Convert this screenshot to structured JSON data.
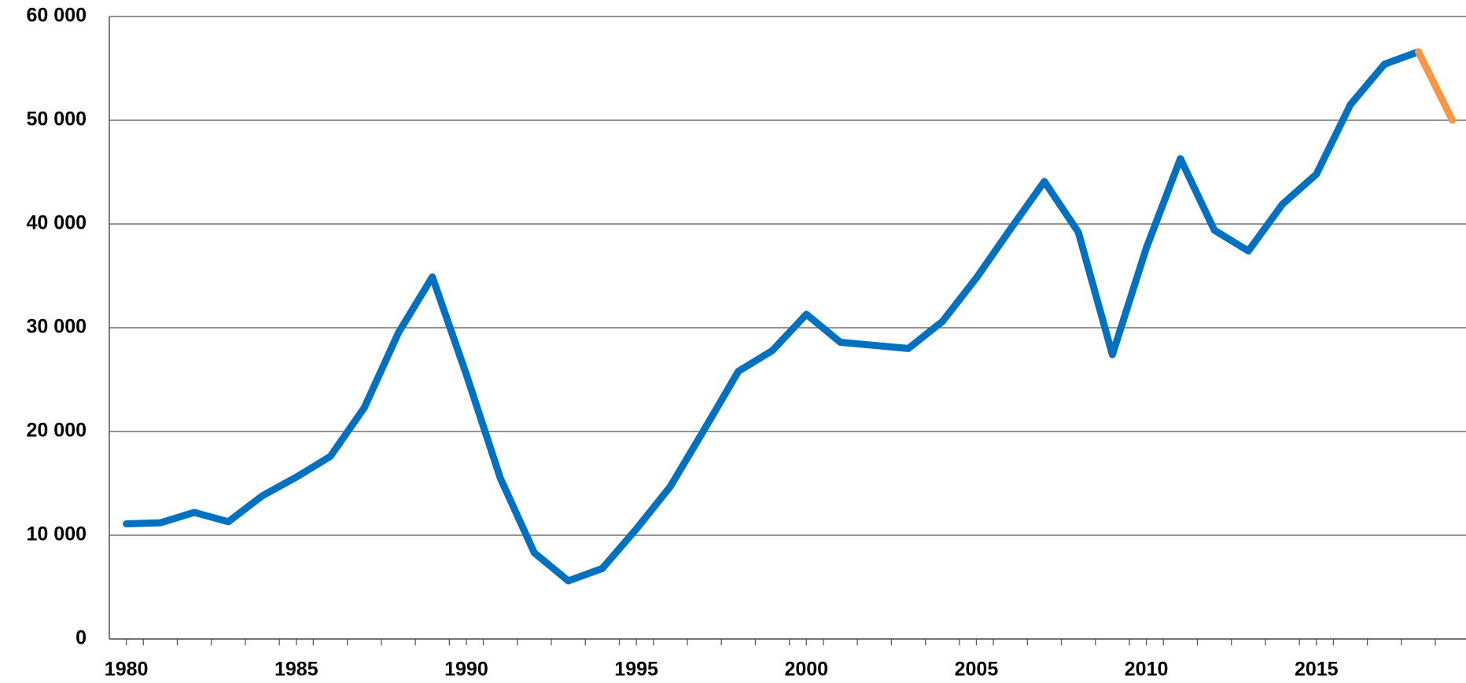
{
  "chart_data": {
    "type": "line",
    "x": [
      1980,
      1981,
      1982,
      1983,
      1984,
      1985,
      1986,
      1987,
      1988,
      1989,
      1990,
      1991,
      1992,
      1993,
      1994,
      1995,
      1996,
      1997,
      1998,
      1999,
      2000,
      2001,
      2002,
      2003,
      2004,
      2005,
      2006,
      2007,
      2008,
      2009,
      2010,
      2011,
      2012,
      2013,
      2014,
      2015,
      2016,
      2017,
      2018,
      2019
    ],
    "series": [
      {
        "color": "#0070c0",
        "values": [
          11100,
          11200,
          12200,
          11300,
          13800,
          15600,
          17600,
          22300,
          29500,
          34900,
          25500,
          15500,
          8300,
          5600,
          6800,
          10600,
          14700,
          20200,
          25800,
          27800,
          31300,
          28600,
          28300,
          28000,
          30600,
          34800,
          39500,
          44100,
          39200,
          27400,
          37700,
          46300,
          39400,
          37400,
          41900,
          44800,
          51500,
          55400,
          56600,
          null
        ]
      },
      {
        "color": "#f79646",
        "values": [
          null,
          null,
          null,
          null,
          null,
          null,
          null,
          null,
          null,
          null,
          null,
          null,
          null,
          null,
          null,
          null,
          null,
          null,
          null,
          null,
          null,
          null,
          null,
          null,
          null,
          null,
          null,
          null,
          null,
          null,
          null,
          null,
          null,
          null,
          null,
          null,
          null,
          null,
          56600,
          50000
        ]
      }
    ],
    "xlim": [
      1979.5,
      2019.4
    ],
    "xticks": [
      1980,
      1985,
      1990,
      1995,
      2000,
      2005,
      2010,
      2015
    ],
    "ylim": [
      0,
      60000
    ],
    "yticks": [
      {
        "value": 0,
        "label": "0"
      },
      {
        "value": 10000,
        "label": "10 000"
      },
      {
        "value": 20000,
        "label": "20 000"
      },
      {
        "value": 30000,
        "label": "30 000"
      },
      {
        "value": 40000,
        "label": "40 000"
      },
      {
        "value": 50000,
        "label": "50 000"
      },
      {
        "value": 60000,
        "label": "60 000"
      }
    ],
    "grid": true
  }
}
